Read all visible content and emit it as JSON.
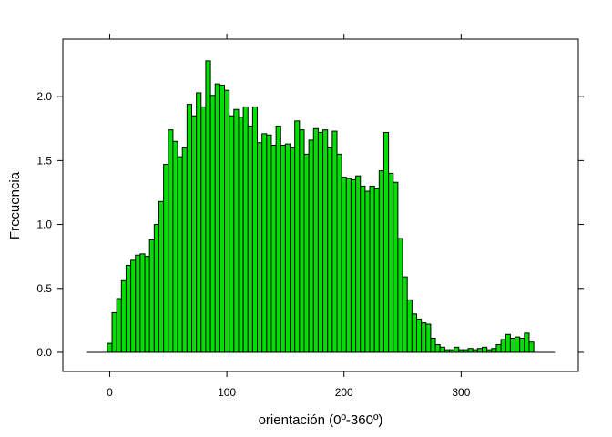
{
  "chart_data": {
    "type": "bar",
    "title": "",
    "xlabel": "orientación (0º-360º)",
    "ylabel": "Frecuencia",
    "xlim": [
      -40,
      400
    ],
    "ylim": [
      -0.15,
      2.45
    ],
    "xticks": [
      0,
      100,
      200,
      300
    ],
    "xtick_labels": [
      "0",
      "100",
      "200",
      "300"
    ],
    "yticks": [
      0.0,
      0.5,
      1.0,
      1.5,
      2.0
    ],
    "ytick_labels": [
      "0.0",
      "0.5",
      "1.0",
      "1.5",
      "2.0"
    ],
    "baseline": {
      "x_start": -20,
      "x_end": 380
    },
    "grid": false,
    "bar_color": "#00e000",
    "bar_edge_color": "#000000",
    "bin_width": 4,
    "bin_start": -2,
    "values": [
      0.07,
      0.31,
      0.42,
      0.56,
      0.68,
      0.72,
      0.76,
      0.77,
      0.75,
      0.88,
      1.0,
      1.18,
      1.47,
      1.74,
      1.65,
      1.53,
      1.6,
      1.94,
      1.85,
      2.03,
      1.92,
      2.28,
      2.01,
      2.1,
      2.09,
      2.05,
      1.85,
      1.9,
      1.84,
      1.92,
      1.77,
      1.92,
      1.64,
      1.71,
      1.7,
      1.62,
      1.77,
      1.62,
      1.63,
      1.6,
      1.81,
      1.74,
      1.55,
      1.66,
      1.75,
      1.72,
      1.74,
      1.6,
      1.73,
      1.55,
      1.37,
      1.36,
      1.35,
      1.38,
      1.3,
      1.26,
      1.3,
      1.28,
      1.42,
      1.72,
      1.4,
      1.33,
      0.89,
      0.59,
      0.41,
      0.3,
      0.26,
      0.23,
      0.22,
      0.11,
      0.06,
      0.04,
      0.02,
      0.02,
      0.04,
      0.02,
      0.02,
      0.03,
      0.02,
      0.03,
      0.04,
      0.02,
      0.03,
      0.06,
      0.1,
      0.14,
      0.11,
      0.12,
      0.11,
      0.15,
      0.08
    ]
  }
}
